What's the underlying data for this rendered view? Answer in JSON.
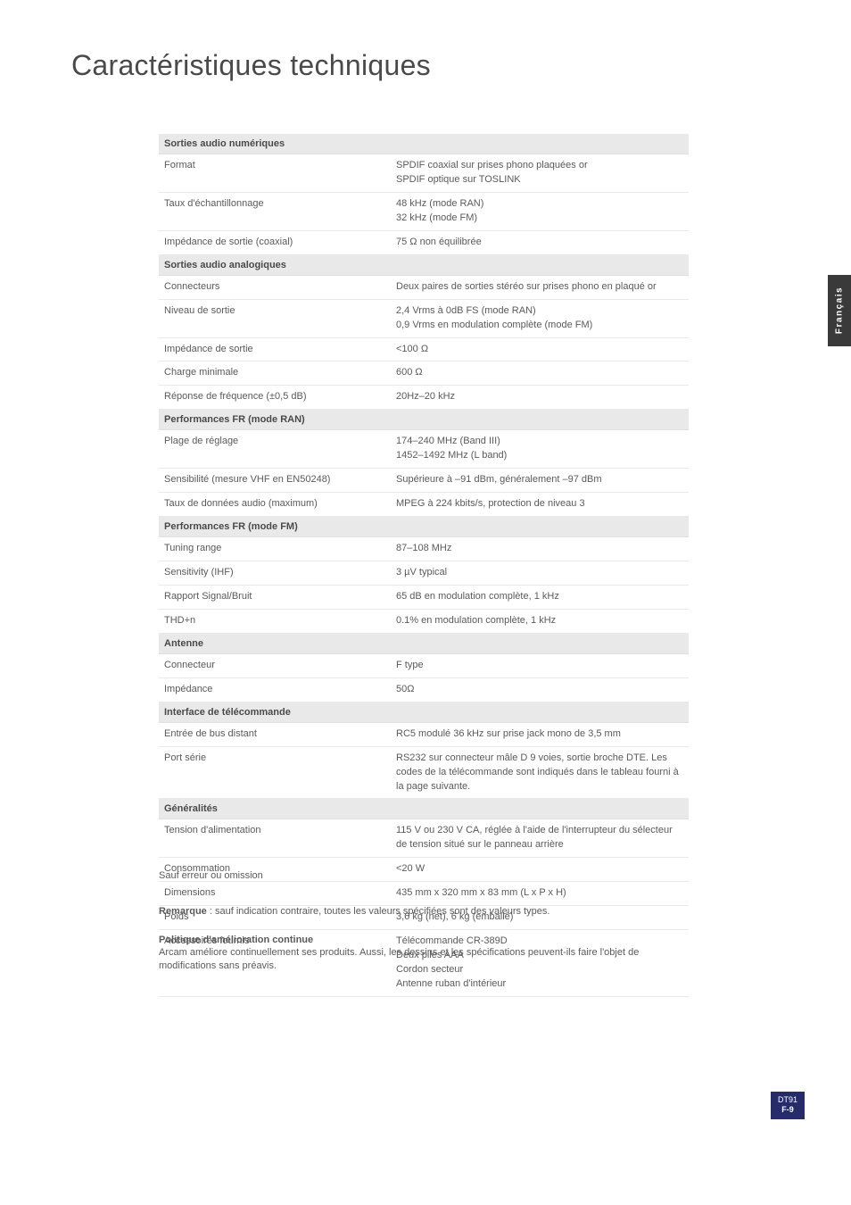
{
  "page_title": "Caractéristiques techniques",
  "side_tab": "Français",
  "corner": {
    "model": "DT91",
    "page": "F-9"
  },
  "sections": [
    {
      "header": "Sorties audio numériques",
      "rows": [
        {
          "label": "Format",
          "value": "SPDIF coaxial sur prises phono plaquées or\nSPDIF optique sur TOSLINK"
        },
        {
          "label": "Taux d'échantillonnage",
          "value": "48 kHz (mode RAN)\n32 kHz (mode FM)"
        },
        {
          "label": "Impédance de sortie (coaxial)",
          "value": "75 Ω non équilibrée"
        }
      ]
    },
    {
      "header": "Sorties audio analogiques",
      "rows": [
        {
          "label": "Connecteurs",
          "value": "Deux paires de sorties stéréo sur prises phono en plaqué or"
        },
        {
          "label": "Niveau de sortie",
          "value": "2,4 Vrms à 0dB FS (mode RAN)\n0,9 Vrms en modulation complète (mode FM)"
        },
        {
          "label": "Impédance de sortie",
          "value": "<100 Ω"
        },
        {
          "label": "Charge minimale",
          "value": "600 Ω"
        },
        {
          "label": "Réponse de fréquence (±0,5 dB)",
          "value": "20Hz–20 kHz"
        }
      ]
    },
    {
      "header": "Performances FR (mode RAN)",
      "rows": [
        {
          "label": "Plage de réglage",
          "value": "174–240 MHz (Band III)\n1452–1492 MHz (L band)"
        },
        {
          "label": "Sensibilité (mesure VHF en EN50248)",
          "value": "Supérieure à –91 dBm, généralement –97 dBm"
        },
        {
          "label": "Taux de données audio (maximum)",
          "value": "MPEG à 224 kbits/s, protection de niveau 3"
        }
      ]
    },
    {
      "header": "Performances FR (mode FM)",
      "rows": [
        {
          "label": "Tuning range",
          "value": "87–108 MHz"
        },
        {
          "label": "Sensitivity (IHF)",
          "value": "3 µV typical"
        },
        {
          "label": "Rapport Signal/Bruit",
          "value": "65 dB en modulation complète, 1 kHz"
        },
        {
          "label": "THD+n",
          "value": "0.1% en modulation complète, 1 kHz"
        }
      ]
    },
    {
      "header": "Antenne",
      "rows": [
        {
          "label": "Connecteur",
          "value": "F type"
        },
        {
          "label": "Impédance",
          "value": "50Ω"
        }
      ]
    },
    {
      "header": "Interface de télécommande",
      "rows": [
        {
          "label": "Entrée de bus distant",
          "value": "RC5 modulé 36 kHz sur prise jack mono de 3,5 mm"
        },
        {
          "label": "Port série",
          "value": "RS232 sur connecteur mâle D 9 voies, sortie broche DTE. Les codes de la télécommande sont indiqués dans le tableau fourni à la page suivante."
        }
      ]
    },
    {
      "header": "Généralités",
      "rows": [
        {
          "label": "Tension d'alimentation",
          "value": "115 V ou 230 V CA, réglée à l'aide de l'interrupteur du sélecteur de tension situé sur le panneau arrière"
        },
        {
          "label": "Consommation",
          "value": "<20 W"
        },
        {
          "label": "Dimensions",
          "value": "435 mm x 320 mm x 83 mm (L x P x H)"
        },
        {
          "label": "Poids",
          "value": "3,6 kg (net), 6 kg (emballé)"
        },
        {
          "label": "Accessoires fournis",
          "value": "Télécommande CR-389D\nDeux piles AAA\nCordon secteur\nAntenne ruban d'intérieur"
        }
      ]
    }
  ],
  "footnote_error": "Sauf erreur ou omission",
  "note_label": "Remarque",
  "note_text": " : sauf indication contraire, toutes les valeurs spécifiées sont des valeurs types.",
  "policy_title": "Politique d'amélioration continue",
  "policy_body": "Arcam améliore continuellement ses produits. Aussi, les dessins et les spécifications peuvent-ils faire l'objet de modifications sans préavis.",
  "colors": {
    "section_bg": "#e9e9e9",
    "row_border": "#e9e9e9",
    "text": "#5a5a5a",
    "title": "#4a4a4a",
    "sidetab_bg": "#3a3a3a",
    "corner_bg": "#262c6a"
  }
}
